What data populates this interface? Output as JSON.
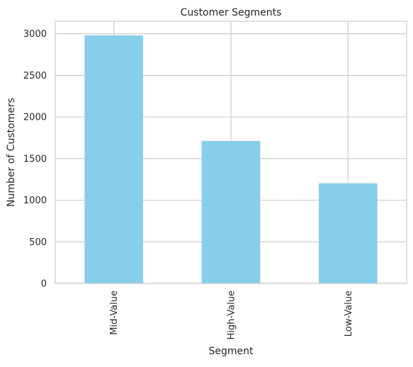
{
  "chart_data": {
    "type": "bar",
    "title": "Customer Segments",
    "xlabel": "Segment",
    "ylabel": "Number of Customers",
    "categories": [
      "Mid-Value",
      "High-Value",
      "Low-Value"
    ],
    "values": [
      2980,
      1712,
      1203
    ],
    "ylim": [
      0,
      3150
    ],
    "yticks": [
      0,
      500,
      1000,
      1500,
      2000,
      2500,
      3000
    ],
    "grid": true,
    "bar_color": "#87CEEB",
    "grid_color": "#cccccc",
    "axes_edge_color": "#cccccc"
  }
}
